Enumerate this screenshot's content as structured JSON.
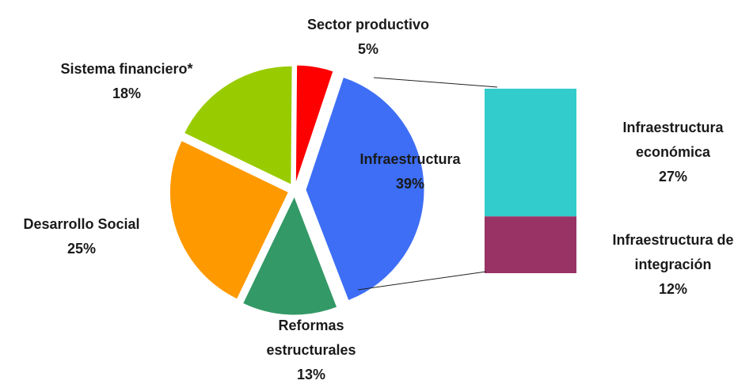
{
  "chart_data": {
    "type": "pie-of-bar",
    "categories": [
      "Sector productivo",
      "Infraestructura",
      "Reformas estructurales",
      "Desarrollo Social",
      "Sistema financiero*"
    ],
    "values": [
      5,
      39,
      13,
      25,
      18
    ],
    "value_labels": [
      "5%",
      "39%",
      "13%",
      "25%",
      "18%"
    ],
    "colors": [
      "#ff0000",
      "#3d6ef5",
      "#339966",
      "#ff9900",
      "#99cc00"
    ],
    "bar": {
      "categories": [
        "Infraestructura económica",
        "Infraestructura de integración"
      ],
      "values": [
        27,
        12
      ],
      "value_labels": [
        "27%",
        "12%"
      ],
      "colors": [
        "#33cccc",
        "#993366"
      ]
    }
  }
}
